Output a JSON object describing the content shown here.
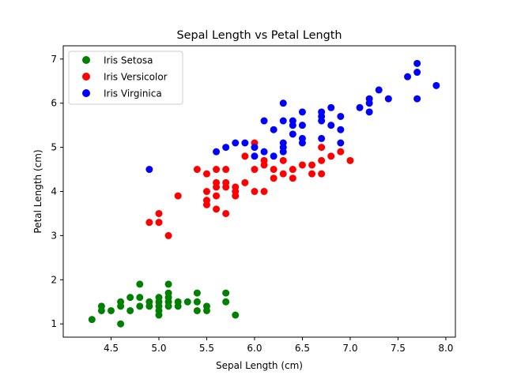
{
  "chart_data": {
    "type": "scatter",
    "title": "Sepal Length vs Petal Length",
    "xlabel": "Sepal Length (cm)",
    "ylabel": "Petal Length (cm)",
    "xlim": [
      4.0,
      8.1
    ],
    "ylim": [
      0.7,
      7.3
    ],
    "xticks": [
      "4.5",
      "5.0",
      "5.5",
      "6.0",
      "6.5",
      "7.0",
      "7.5",
      "8.0"
    ],
    "yticks": [
      "1",
      "2",
      "3",
      "4",
      "5",
      "6",
      "7"
    ],
    "grid": false,
    "legend_position": "top-left",
    "series": [
      {
        "name": "Iris Setosa",
        "color": "#008000",
        "points": [
          [
            4.3,
            1.1
          ],
          [
            4.4,
            1.3
          ],
          [
            4.4,
            1.4
          ],
          [
            4.5,
            1.3
          ],
          [
            4.6,
            1.0
          ],
          [
            4.6,
            1.4
          ],
          [
            4.6,
            1.5
          ],
          [
            4.7,
            1.3
          ],
          [
            4.7,
            1.6
          ],
          [
            4.8,
            1.4
          ],
          [
            4.8,
            1.6
          ],
          [
            4.8,
            1.9
          ],
          [
            4.9,
            1.4
          ],
          [
            4.9,
            1.5
          ],
          [
            5.0,
            1.2
          ],
          [
            5.0,
            1.3
          ],
          [
            5.0,
            1.4
          ],
          [
            5.0,
            1.5
          ],
          [
            5.0,
            1.6
          ],
          [
            5.1,
            1.4
          ],
          [
            5.1,
            1.5
          ],
          [
            5.1,
            1.6
          ],
          [
            5.1,
            1.7
          ],
          [
            5.1,
            1.9
          ],
          [
            5.2,
            1.4
          ],
          [
            5.2,
            1.5
          ],
          [
            5.3,
            1.5
          ],
          [
            5.4,
            1.3
          ],
          [
            5.4,
            1.5
          ],
          [
            5.4,
            1.7
          ],
          [
            5.5,
            1.3
          ],
          [
            5.5,
            1.4
          ],
          [
            5.7,
            1.5
          ],
          [
            5.7,
            1.7
          ],
          [
            5.8,
            1.2
          ]
        ]
      },
      {
        "name": "Iris Versicolor",
        "color": "#ff0000",
        "points": [
          [
            4.9,
            3.3
          ],
          [
            5.0,
            3.3
          ],
          [
            5.0,
            3.5
          ],
          [
            5.1,
            3.0
          ],
          [
            5.2,
            3.9
          ],
          [
            5.4,
            4.5
          ],
          [
            5.5,
            3.7
          ],
          [
            5.5,
            3.8
          ],
          [
            5.5,
            4.0
          ],
          [
            5.5,
            4.4
          ],
          [
            5.6,
            3.6
          ],
          [
            5.6,
            3.9
          ],
          [
            5.6,
            4.1
          ],
          [
            5.6,
            4.2
          ],
          [
            5.6,
            4.5
          ],
          [
            5.7,
            3.5
          ],
          [
            5.7,
            4.1
          ],
          [
            5.7,
            4.2
          ],
          [
            5.7,
            4.5
          ],
          [
            5.8,
            3.9
          ],
          [
            5.8,
            4.0
          ],
          [
            5.8,
            4.1
          ],
          [
            5.9,
            4.2
          ],
          [
            5.9,
            4.8
          ],
          [
            6.0,
            4.0
          ],
          [
            6.0,
            4.5
          ],
          [
            6.0,
            5.1
          ],
          [
            6.1,
            4.0
          ],
          [
            6.1,
            4.6
          ],
          [
            6.1,
            4.7
          ],
          [
            6.2,
            4.3
          ],
          [
            6.2,
            4.5
          ],
          [
            6.3,
            4.4
          ],
          [
            6.3,
            4.7
          ],
          [
            6.4,
            4.3
          ],
          [
            6.4,
            4.5
          ],
          [
            6.5,
            4.6
          ],
          [
            6.6,
            4.4
          ],
          [
            6.6,
            4.6
          ],
          [
            6.7,
            4.4
          ],
          [
            6.7,
            4.7
          ],
          [
            6.7,
            5.0
          ],
          [
            6.8,
            4.8
          ],
          [
            6.9,
            4.9
          ],
          [
            7.0,
            4.7
          ]
        ]
      },
      {
        "name": "Iris Virginica",
        "color": "#0000ff",
        "points": [
          [
            4.9,
            4.5
          ],
          [
            5.6,
            4.9
          ],
          [
            5.7,
            5.0
          ],
          [
            5.8,
            5.1
          ],
          [
            5.9,
            5.1
          ],
          [
            6.0,
            4.8
          ],
          [
            6.0,
            5.0
          ],
          [
            6.1,
            4.9
          ],
          [
            6.1,
            5.6
          ],
          [
            6.2,
            4.8
          ],
          [
            6.2,
            5.4
          ],
          [
            6.3,
            4.9
          ],
          [
            6.3,
            5.0
          ],
          [
            6.3,
            5.1
          ],
          [
            6.3,
            5.6
          ],
          [
            6.3,
            6.0
          ],
          [
            6.4,
            5.3
          ],
          [
            6.4,
            5.5
          ],
          [
            6.4,
            5.6
          ],
          [
            6.5,
            5.1
          ],
          [
            6.5,
            5.2
          ],
          [
            6.5,
            5.5
          ],
          [
            6.5,
            5.8
          ],
          [
            6.7,
            5.2
          ],
          [
            6.7,
            5.6
          ],
          [
            6.7,
            5.7
          ],
          [
            6.7,
            5.8
          ],
          [
            6.8,
            5.5
          ],
          [
            6.8,
            5.9
          ],
          [
            6.9,
            5.1
          ],
          [
            6.9,
            5.4
          ],
          [
            6.9,
            5.7
          ],
          [
            7.1,
            5.9
          ],
          [
            7.2,
            5.8
          ],
          [
            7.2,
            6.0
          ],
          [
            7.2,
            6.1
          ],
          [
            7.3,
            6.3
          ],
          [
            7.4,
            6.1
          ],
          [
            7.6,
            6.6
          ],
          [
            7.7,
            6.1
          ],
          [
            7.7,
            6.7
          ],
          [
            7.7,
            6.9
          ],
          [
            7.9,
            6.4
          ]
        ]
      }
    ]
  }
}
